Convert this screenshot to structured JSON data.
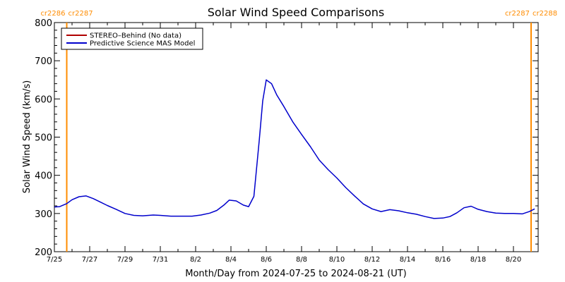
{
  "chart_data": {
    "type": "line",
    "title": "Solar Wind Speed Comparisons",
    "xlabel": "Month/Day from 2024-07-25 to 2024-08-21 (UT)",
    "ylabel": "Solar Wind Speed (km/s)",
    "xlim_days": [
      0,
      27.4
    ],
    "ylim": [
      200,
      800
    ],
    "y_ticks": [
      200,
      300,
      400,
      500,
      600,
      700,
      800
    ],
    "x_ticks": [
      {
        "day": 0,
        "label": "7/25"
      },
      {
        "day": 2,
        "label": "7/27"
      },
      {
        "day": 4,
        "label": "7/29"
      },
      {
        "day": 6,
        "label": "7/31"
      },
      {
        "day": 8,
        "label": "8/2"
      },
      {
        "day": 10,
        "label": "8/4"
      },
      {
        "day": 12,
        "label": "8/6"
      },
      {
        "day": 14,
        "label": "8/8"
      },
      {
        "day": 16,
        "label": "8/10"
      },
      {
        "day": 18,
        "label": "8/12"
      },
      {
        "day": 20,
        "label": "8/14"
      },
      {
        "day": 22,
        "label": "8/16"
      },
      {
        "day": 24,
        "label": "8/18"
      },
      {
        "day": 26,
        "label": "8/20"
      }
    ],
    "carrington_markers": [
      {
        "day": 0.7,
        "left_label": "cr2286",
        "right_label": "cr2287",
        "color": "#ff8c00"
      },
      {
        "day": 27.0,
        "left_label": "cr2287",
        "right_label": "cr2288",
        "color": "#ff8c00"
      }
    ],
    "legend": {
      "placement": "top-left",
      "entries": [
        {
          "label": "STEREO–Behind (No data)",
          "color": "#b00000"
        },
        {
          "label": "Predictive Science MAS Model",
          "color": "#0000cc"
        }
      ]
    },
    "series": [
      {
        "name": "STEREO–Behind (No data)",
        "color": "#b00000",
        "x_days": [],
        "y": []
      },
      {
        "name": "Predictive Science MAS Model",
        "color": "#0000cc",
        "x_days": [
          0.0,
          0.3,
          0.7,
          1.0,
          1.4,
          1.8,
          2.2,
          2.6,
          3.0,
          3.5,
          4.0,
          4.5,
          5.0,
          5.6,
          6.0,
          6.6,
          7.2,
          7.8,
          8.3,
          8.8,
          9.2,
          9.6,
          9.9,
          10.3,
          10.7,
          11.0,
          11.3,
          11.6,
          11.8,
          12.0,
          12.3,
          12.6,
          13.0,
          13.5,
          14.0,
          14.5,
          15.0,
          15.5,
          16.0,
          16.5,
          17.0,
          17.5,
          18.0,
          18.5,
          19.0,
          19.5,
          20.0,
          20.5,
          21.0,
          21.5,
          22.0,
          22.4,
          22.8,
          23.2,
          23.6,
          24.0,
          24.5,
          25.0,
          25.5,
          26.0,
          26.5,
          26.9,
          27.2
        ],
        "y": [
          317,
          318,
          326,
          336,
          344,
          346,
          339,
          330,
          321,
          311,
          300,
          295,
          294,
          296,
          295,
          293,
          293,
          293,
          296,
          301,
          308,
          322,
          335,
          333,
          322,
          318,
          345,
          490,
          595,
          650,
          640,
          610,
          580,
          540,
          507,
          475,
          440,
          415,
          393,
          368,
          346,
          325,
          312,
          305,
          310,
          307,
          302,
          298,
          292,
          287,
          288,
          292,
          302,
          315,
          319,
          311,
          305,
          301,
          300,
          300,
          299,
          305,
          312
        ]
      }
    ]
  }
}
